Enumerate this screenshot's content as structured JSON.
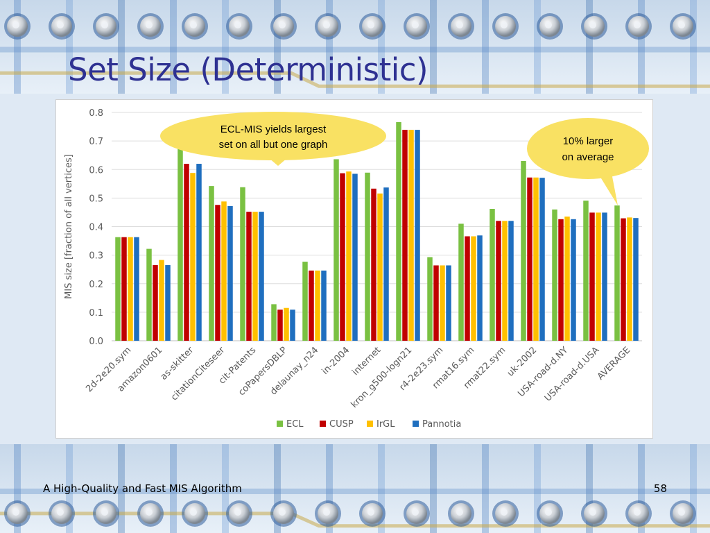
{
  "slide": {
    "title": "Set Size (Deterministic)",
    "footer_left": "A High-Quality and Fast MIS Algorithm",
    "page_number": "58"
  },
  "colors": {
    "title": "#2e3192",
    "callout_fill": "#f9e163",
    "ECL": "#7ac142",
    "CUSP": "#c00000",
    "IrGL": "#ffc000",
    "Pannotia": "#1f6fbf"
  },
  "chart_data": {
    "type": "bar",
    "title": "",
    "xlabel": "",
    "ylabel": "MIS size [fraction of all vertices]",
    "ylim": [
      0,
      0.8
    ],
    "yticks": [
      "0.0",
      "0.1",
      "0.2",
      "0.3",
      "0.4",
      "0.5",
      "0.6",
      "0.7",
      "0.8"
    ],
    "grid": true,
    "legend": "bottom",
    "categories": [
      "2d-2e20.sym",
      "amazon0601",
      "as-skitter",
      "citationCiteseer",
      "cit-Patents",
      "coPapersDBLP",
      "delaunay_n24",
      "in-2004",
      "internet",
      "kron_g500-logn21",
      "r4-2e23.sym",
      "rmat16.sym",
      "rmat22.sym",
      "uk-2002",
      "USA-road-d.NY",
      "USA-road-d.USA",
      "AVERAGE"
    ],
    "series": [
      {
        "name": "ECL",
        "values": [
          0.363,
          0.322,
          0.672,
          0.542,
          0.538,
          0.128,
          0.277,
          0.636,
          0.589,
          0.766,
          0.293,
          0.41,
          0.462,
          0.63,
          0.46,
          0.491,
          0.474
        ]
      },
      {
        "name": "CUSP",
        "values": [
          0.363,
          0.265,
          0.62,
          0.476,
          0.452,
          0.109,
          0.246,
          0.587,
          0.533,
          0.739,
          0.264,
          0.366,
          0.42,
          0.572,
          0.426,
          0.449,
          0.429
        ]
      },
      {
        "name": "IrGL",
        "values": [
          0.363,
          0.283,
          0.588,
          0.488,
          0.452,
          0.115,
          0.246,
          0.593,
          0.516,
          0.739,
          0.264,
          0.366,
          0.42,
          0.572,
          0.435,
          0.449,
          0.432
        ]
      },
      {
        "name": "Pannotia",
        "values": [
          0.363,
          0.265,
          0.62,
          0.472,
          0.452,
          0.109,
          0.246,
          0.585,
          0.537,
          0.739,
          0.264,
          0.369,
          0.42,
          0.571,
          0.426,
          0.449,
          0.43
        ]
      }
    ],
    "annotations": [
      {
        "line1": "ECL-MIS yields largest",
        "line2": "set on all but one graph"
      },
      {
        "line1": "10% larger",
        "line2": "on average"
      }
    ]
  }
}
